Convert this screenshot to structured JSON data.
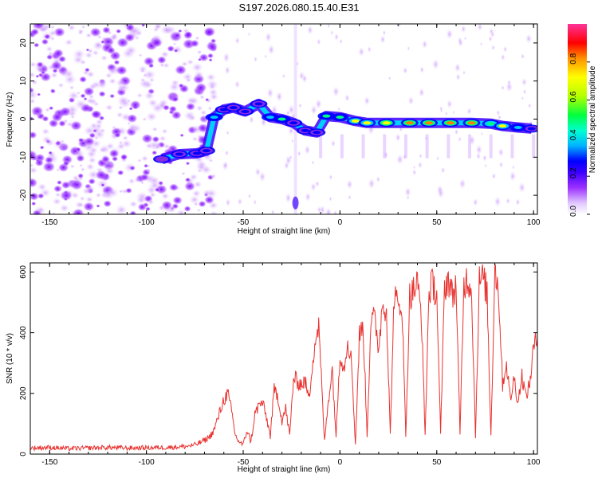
{
  "title": "S197.2026.080.15.40.E31",
  "colors": {
    "snr_line": "#e8322f",
    "frame": "#000000"
  },
  "chart_data": [
    {
      "type": "heatmap",
      "title": "S197.2026.080.15.40.E31",
      "xlabel": "Height of straight line (km)",
      "ylabel": "Frequency (Hz)",
      "xlim": [
        -160,
        102
      ],
      "ylim": [
        -25,
        25
      ],
      "xticks": [
        -150,
        -100,
        -50,
        0,
        50,
        100
      ],
      "xtick_labels": [
        "-150",
        "-100",
        "-50",
        "0",
        "50",
        "100"
      ],
      "yticks": [
        -20,
        -10,
        0,
        10,
        20
      ],
      "ytick_labels": [
        "-20",
        "-10",
        "0",
        "10",
        "20"
      ],
      "colorbar": {
        "label": "Normalized spectral amplitude",
        "range": [
          0,
          1
        ],
        "ticks": [
          0,
          0.2,
          0.4,
          0.6,
          0.8
        ],
        "tick_labels": [
          "0.0",
          "0.2",
          "0.4",
          "0.6",
          "0.8"
        ],
        "colormap": [
          "#ffffff",
          "#e6c8ff",
          "#8a2be2",
          "#3c00ff",
          "#0000ff",
          "#00c8ff",
          "#00ff80",
          "#80ff00",
          "#ffff00",
          "#ff8000",
          "#ff0000",
          "#ff1493",
          "#ff3399"
        ]
      },
      "ridge": [
        {
          "x": -92,
          "y": -10.5,
          "a": 0.25
        },
        {
          "x": -83,
          "y": -9.2,
          "a": 0.35
        },
        {
          "x": -74,
          "y": -9.0,
          "a": 0.3
        },
        {
          "x": -69,
          "y": -8.3,
          "a": 0.4
        },
        {
          "x": -65,
          "y": 0.5,
          "a": 0.45
        },
        {
          "x": -60,
          "y": 2.5,
          "a": 0.3
        },
        {
          "x": -55,
          "y": 3.0,
          "a": 0.4
        },
        {
          "x": -49,
          "y": 2.0,
          "a": 0.35
        },
        {
          "x": -42,
          "y": 4.0,
          "a": 0.4
        },
        {
          "x": -36,
          "y": 0.5,
          "a": 0.45
        },
        {
          "x": -30,
          "y": 0.0,
          "a": 0.6
        },
        {
          "x": -24,
          "y": -1.0,
          "a": 0.35
        },
        {
          "x": -18,
          "y": -3.0,
          "a": 0.4
        },
        {
          "x": -12,
          "y": -3.5,
          "a": 0.35
        },
        {
          "x": -7,
          "y": 0.8,
          "a": 0.6
        },
        {
          "x": 0,
          "y": 0.5,
          "a": 0.55
        },
        {
          "x": 8,
          "y": -0.5,
          "a": 0.7
        },
        {
          "x": 14,
          "y": -1.0,
          "a": 0.75
        },
        {
          "x": 24,
          "y": -1.0,
          "a": 0.8
        },
        {
          "x": 36,
          "y": -1.0,
          "a": 0.85
        },
        {
          "x": 46,
          "y": -1.0,
          "a": 0.9
        },
        {
          "x": 57,
          "y": -1.0,
          "a": 0.85
        },
        {
          "x": 68,
          "y": -1.0,
          "a": 0.9
        },
        {
          "x": 78,
          "y": -1.2,
          "a": 0.65
        },
        {
          "x": 84,
          "y": -1.8,
          "a": 0.75
        },
        {
          "x": 92,
          "y": -2.2,
          "a": 0.45
        },
        {
          "x": 99,
          "y": -2.5,
          "a": 0.35
        }
      ]
    },
    {
      "type": "line",
      "xlabel": "Height of straight line (km)",
      "ylabel": "SNR (10 * v/v)",
      "xlim": [
        -160,
        102
      ],
      "ylim": [
        0,
        630
      ],
      "xticks": [
        -150,
        -100,
        -50,
        0,
        50,
        100
      ],
      "xtick_labels": [
        "-150",
        "-100",
        "-50",
        "0",
        "50",
        "100"
      ],
      "yticks": [
        0,
        200,
        400,
        600
      ],
      "ytick_labels": [
        "0",
        "200",
        "400",
        "600"
      ],
      "series": [
        {
          "name": "SNR",
          "x": [
            -160,
            -150,
            -140,
            -130,
            -120,
            -110,
            -100,
            -90,
            -80,
            -75,
            -70,
            -67,
            -65,
            -62,
            -60,
            -58,
            -56,
            -54,
            -52,
            -50,
            -48,
            -46,
            -44,
            -42,
            -40,
            -38,
            -36,
            -34,
            -32,
            -30,
            -28,
            -26,
            -24,
            -22,
            -20,
            -18,
            -16,
            -14,
            -12,
            -11,
            -10,
            -8,
            -6,
            -4,
            -2,
            0,
            2,
            4,
            6,
            8,
            10,
            12,
            14,
            16,
            18,
            20,
            22,
            24,
            26,
            28,
            30,
            32,
            34,
            36,
            38,
            40,
            42,
            44,
            46,
            48,
            50,
            52,
            54,
            56,
            58,
            60,
            62,
            64,
            66,
            68,
            70,
            72,
            74,
            76,
            78,
            80,
            82,
            84,
            86,
            88,
            90,
            92,
            94,
            96,
            98,
            100,
            102
          ],
          "y": [
            20,
            22,
            18,
            20,
            22,
            20,
            21,
            22,
            25,
            30,
            45,
            60,
            80,
            140,
            180,
            200,
            140,
            60,
            40,
            30,
            80,
            40,
            130,
            160,
            170,
            120,
            60,
            210,
            190,
            110,
            150,
            60,
            250,
            240,
            230,
            240,
            180,
            320,
            400,
            420,
            300,
            40,
            180,
            280,
            60,
            340,
            280,
            380,
            300,
            30,
            390,
            420,
            60,
            450,
            440,
            350,
            500,
            480,
            60,
            530,
            480,
            500,
            60,
            520,
            540,
            560,
            470,
            60,
            540,
            560,
            530,
            60,
            550,
            580,
            520,
            560,
            60,
            560,
            580,
            540,
            60,
            570,
            580,
            530,
            60,
            620,
            530,
            230,
            300,
            180,
            250,
            170,
            260,
            190,
            230,
            350,
            380
          ]
        }
      ]
    }
  ]
}
